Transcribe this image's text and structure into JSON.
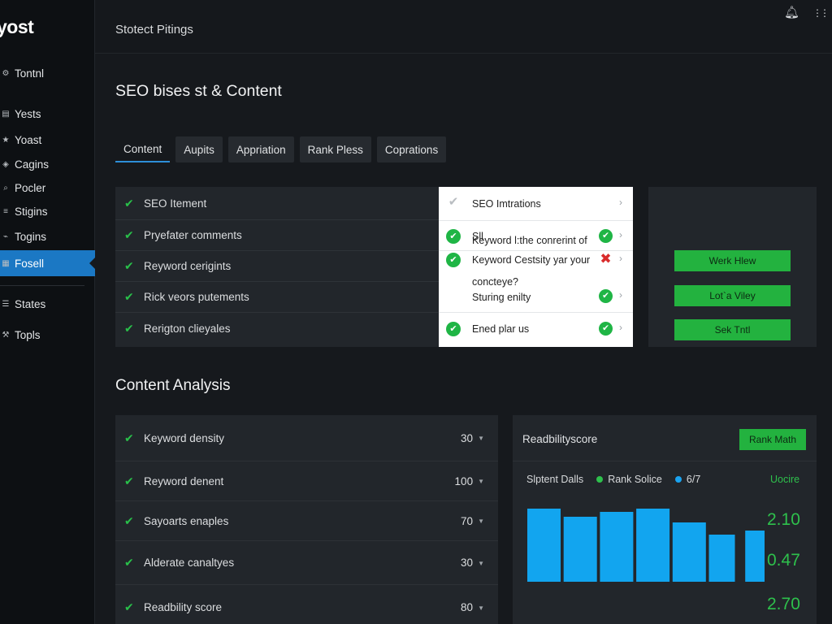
{
  "app": {
    "logo": "yost"
  },
  "sidebar": {
    "items": [
      {
        "label": "Tontnl",
        "icon": "gear-icon",
        "glyph": "⚙"
      },
      {
        "label": "Yests",
        "icon": "document-icon",
        "glyph": "▤"
      },
      {
        "label": "Yoast",
        "icon": "star-icon",
        "glyph": "★"
      },
      {
        "label": "Cagins",
        "icon": "tag-icon",
        "glyph": "◈"
      },
      {
        "label": "Pocler",
        "icon": "search-icon",
        "glyph": "⌕"
      },
      {
        "label": "Stigins",
        "icon": "sliders-icon",
        "glyph": "≡"
      },
      {
        "label": "Togins",
        "icon": "plug-icon",
        "glyph": "⌁"
      },
      {
        "label": "Fosell",
        "icon": "chart-icon",
        "glyph": "▦"
      },
      {
        "label": "States",
        "icon": "list-icon",
        "glyph": "☰"
      },
      {
        "label": "Topls",
        "icon": "tools-icon",
        "glyph": "⚒"
      }
    ]
  },
  "topbar": {
    "title": "Stotect Pitings",
    "icons": [
      {
        "name": "bell-icon",
        "glyph": "🔔︎"
      },
      {
        "name": "grid-icon",
        "glyph": "⋮⋮"
      }
    ]
  },
  "page": {
    "title": "SEO bises st & Content"
  },
  "tabs": [
    {
      "label": "Content"
    },
    {
      "label": "Aupits"
    },
    {
      "label": "Appriation"
    },
    {
      "label": "Rank Pless"
    },
    {
      "label": "Coprations"
    }
  ],
  "seo_list": [
    "SEO Itement",
    "Pryefater comments",
    "Reyword cerigints",
    "Rick veors putements",
    "Rerigton clieyales"
  ],
  "seo_popup": [
    {
      "text": "SEO Imtrations",
      "lead": "gray",
      "status": "none"
    },
    {
      "text": "Sll",
      "lead": "ok",
      "status": "ok"
    },
    {
      "text": "Keyword l:the conrerint of",
      "lead": "none",
      "status": "none"
    },
    {
      "text": "Keyword Cestsity yar your",
      "lead": "ok",
      "status": "bad"
    },
    {
      "text": "concteye?",
      "lead": "none",
      "status": "none"
    },
    {
      "text": "Sturing enilty",
      "lead": "none",
      "status": "ok"
    },
    {
      "text": "Ened plar us",
      "lead": "ok",
      "status": "ok"
    }
  ],
  "actions": [
    {
      "label": "Werk Hlew"
    },
    {
      "label": "Lot`a Viley"
    },
    {
      "label": "Sek Tntl"
    }
  ],
  "content_analysis": {
    "title": "Content Analysis",
    "rows": [
      {
        "label": "Keyword density",
        "value": "30"
      },
      {
        "label": "Reyword denent",
        "value": "100"
      },
      {
        "label": "Sayoarts enaples",
        "value": "70"
      },
      {
        "label": "Alderate canaltyes",
        "value": "30"
      },
      {
        "label": "Readbility score",
        "value": "80"
      }
    ]
  },
  "readability": {
    "title": "Readbilityscore",
    "button": "Rank Math",
    "legend_label": "Slptent Dalls",
    "link": "Uocire",
    "stats": [
      "2.10",
      "0.47",
      "2.70"
    ]
  },
  "chart_data": {
    "type": "bar",
    "values": [
      9,
      8,
      8.6,
      9,
      7.3,
      5.8,
      6.3
    ],
    "series": [
      {
        "name": "Rank Solice",
        "color": "#2ec04c"
      },
      {
        "name": "6/7",
        "color": "#1aa3f0"
      }
    ],
    "ylim": [
      0,
      10
    ],
    "bar_color": "#12a5ef"
  }
}
